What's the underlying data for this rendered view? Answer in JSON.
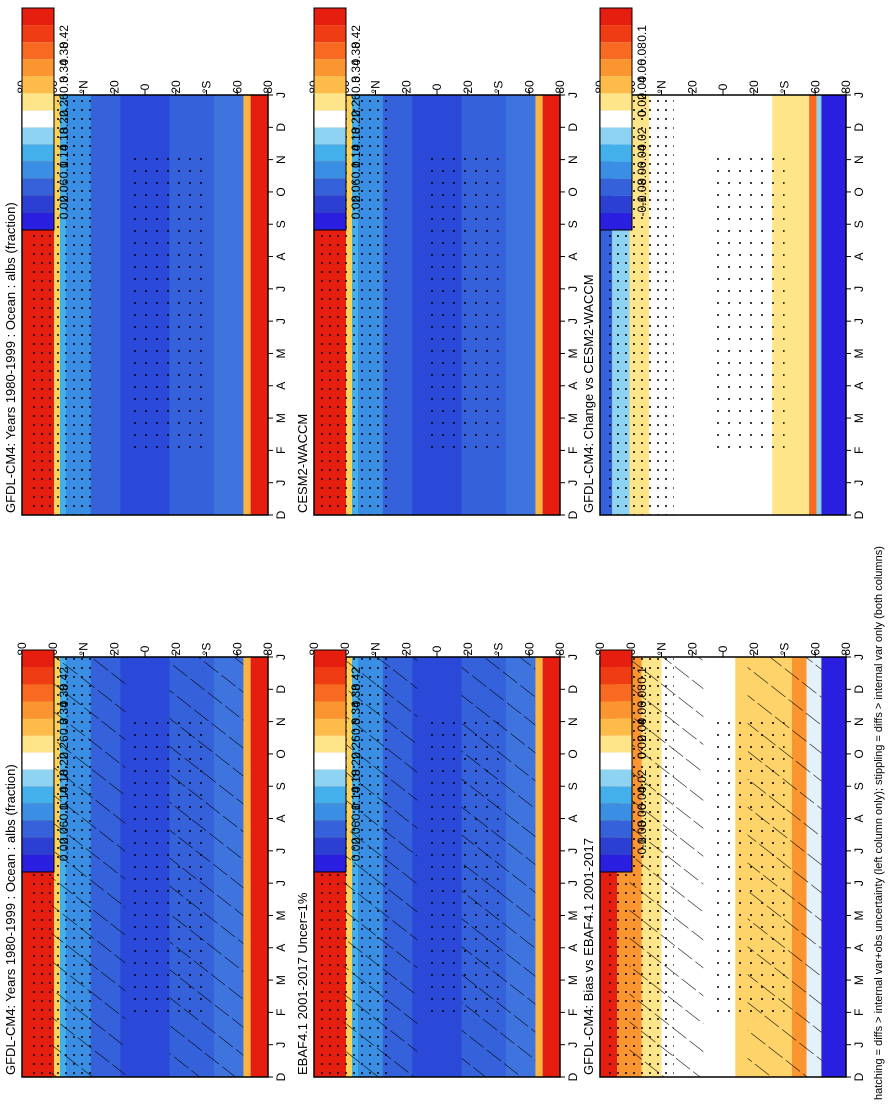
{
  "footer": "hatching = diffs > internal var+obs uncertainty (left column only); stippling = diffs > internal var only (both columns)",
  "chart_data": [
    {
      "type": "heatmap",
      "title": "GFDL-CM4: Years 1980-1999 : Ocean : albs (fraction)",
      "x_categories": [
        "D",
        "J",
        "F",
        "M",
        "A",
        "M",
        "J",
        "J",
        "A",
        "S",
        "O",
        "N",
        "D",
        "J"
      ],
      "y_ticks": [
        "80",
        "60",
        "°N",
        "20",
        "0",
        "20",
        "°S",
        "60",
        "80"
      ],
      "colorbar_ticks": [
        "0.42",
        "0.38",
        "0.34",
        "0.3",
        "0.26",
        "0.22",
        "0.18",
        "0.14",
        "0.1",
        "0.06",
        "0.02"
      ],
      "overlay": "hatching+stippling",
      "field": "abs"
    },
    {
      "type": "heatmap",
      "title": "GFDL-CM4: Years 1980-1999 : Ocean : albs (fraction)",
      "x_categories": [
        "D",
        "J",
        "F",
        "M",
        "A",
        "M",
        "J",
        "J",
        "A",
        "S",
        "O",
        "N",
        "D",
        "J"
      ],
      "y_ticks": [
        "80",
        "60",
        "°N",
        "20",
        "0",
        "20",
        "°S",
        "60",
        "80"
      ],
      "colorbar_ticks": [
        "0.42",
        "0.38",
        "0.34",
        "0.3",
        "0.26",
        "0.22",
        "0.18",
        "0.14",
        "0.1",
        "0.06",
        "0.02"
      ],
      "overlay": "stippling",
      "field": "abs"
    },
    {
      "type": "heatmap",
      "title": "EBAF4.1 2001-2017 Uncer=1%",
      "x_categories": [
        "D",
        "J",
        "F",
        "M",
        "A",
        "M",
        "J",
        "J",
        "A",
        "S",
        "O",
        "N",
        "D",
        "J"
      ],
      "y_ticks": [
        "80",
        "60",
        "°N",
        "20",
        "0",
        "20",
        "°S",
        "60",
        "80"
      ],
      "colorbar_ticks": [
        "0.42",
        "0.38",
        "0.34",
        "0.3",
        "0.26",
        "0.22",
        "0.18",
        "0.14",
        "0.1",
        "0.06",
        "0.02"
      ],
      "overlay": "hatching+stippling",
      "field": "abs"
    },
    {
      "type": "heatmap",
      "title": "CESM2-WACCM",
      "x_categories": [
        "D",
        "J",
        "F",
        "M",
        "A",
        "M",
        "J",
        "J",
        "A",
        "S",
        "O",
        "N",
        "D",
        "J"
      ],
      "y_ticks": [
        "80",
        "60",
        "°N",
        "20",
        "0",
        "20",
        "°S",
        "60",
        "80"
      ],
      "colorbar_ticks": [
        "0.42",
        "0.38",
        "0.34",
        "0.3",
        "0.26",
        "0.22",
        "0.18",
        "0.14",
        "0.1",
        "0.06",
        "0.02"
      ],
      "overlay": "stippling",
      "field": "abs"
    },
    {
      "type": "heatmap",
      "title": "GFDL-CM4: Bias vs EBAF4.1 2001-2017",
      "x_categories": [
        "D",
        "J",
        "F",
        "M",
        "A",
        "M",
        "J",
        "J",
        "A",
        "S",
        "O",
        "N",
        "D",
        "J"
      ],
      "y_ticks": [
        "80",
        "60",
        "°N",
        "20",
        "0",
        "20",
        "°S",
        "60",
        "80"
      ],
      "colorbar_ticks": [
        "0.1",
        "0.08",
        "0.06",
        "0.04",
        "0.02",
        "0",
        "-0.02",
        "-0.04",
        "-0.06",
        "-0.08",
        "-0.1"
      ],
      "overlay": "hatching+stippling",
      "field": "bias"
    },
    {
      "type": "heatmap",
      "title": "GFDL-CM4: Change vs CESM2-WACCM",
      "x_categories": [
        "D",
        "J",
        "F",
        "M",
        "A",
        "M",
        "J",
        "J",
        "A",
        "S",
        "O",
        "N",
        "D",
        "J"
      ],
      "y_ticks": [
        "80",
        "60",
        "°N",
        "20",
        "0",
        "20",
        "°S",
        "60",
        "80"
      ],
      "colorbar_ticks": [
        "0.1",
        "0.08",
        "0.06",
        "0.04",
        "0.02",
        "0",
        "-0.02",
        "-0.04",
        "-0.06",
        "-0.08",
        "-0.1"
      ],
      "overlay": "stippling",
      "field": "change"
    }
  ]
}
